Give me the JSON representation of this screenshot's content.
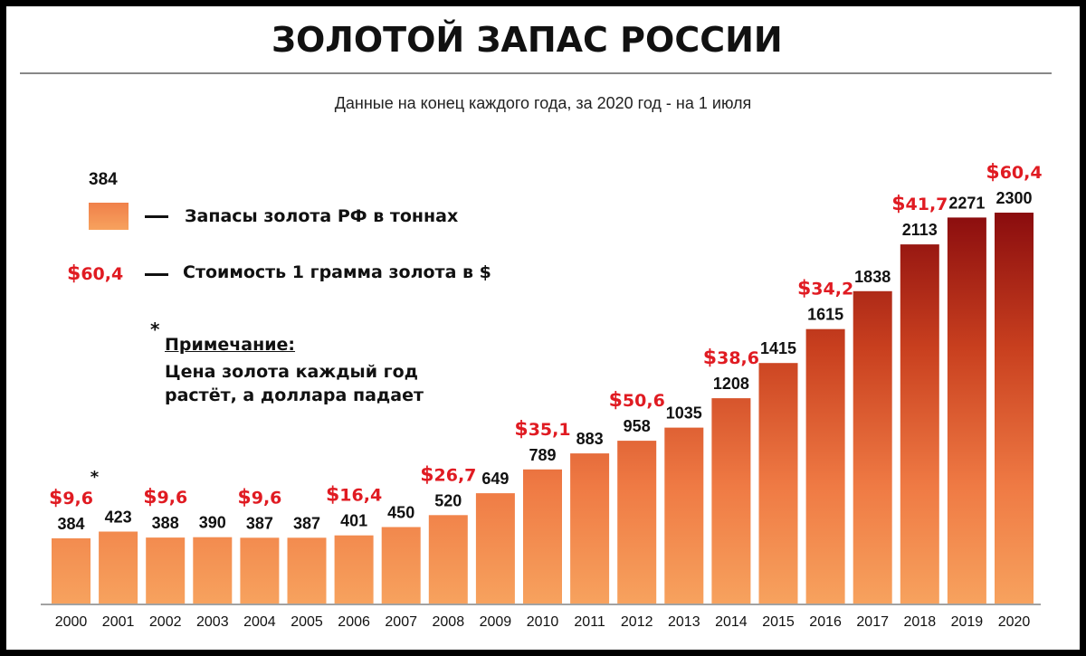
{
  "header": {
    "title": "ЗОЛОТОЙ ЗАПАС РОССИИ",
    "subtitle": "Данные на конец каждого года, за 2020 год - на 1 июля"
  },
  "legend": {
    "sample_value": "384",
    "reserves_label": "Запасы золота РФ в тоннах",
    "price_dollar": "$",
    "price_sample": "60,4",
    "price_label": "Стоимость 1 грамма золота в $"
  },
  "note": {
    "star": "*",
    "title": "Примечание:",
    "line1": "Цена золота каждый год",
    "line2": "растёт, а доллара падает"
  },
  "colors": {
    "bar_light": "#f7a25e",
    "bar_dark": "#8a0c0e",
    "price_red": "#e01b22"
  },
  "chart_data": {
    "type": "bar",
    "categories": [
      "2000",
      "2001",
      "2002",
      "2003",
      "2004",
      "2005",
      "2006",
      "2007",
      "2008",
      "2009",
      "2010",
      "2011",
      "2012",
      "2013",
      "2014",
      "2015",
      "2016",
      "2017",
      "2018",
      "2019",
      "2020"
    ],
    "series": [
      {
        "name": "Запасы золота РФ в тоннах",
        "values": [
          384,
          423,
          388,
          390,
          387,
          387,
          401,
          450,
          520,
          649,
          789,
          883,
          958,
          1035,
          1208,
          1415,
          1615,
          1838,
          2113,
          2271,
          2300
        ]
      }
    ],
    "price_annotations": [
      {
        "category": "2000",
        "label": "9,6",
        "dollar": "$",
        "star": "*"
      },
      {
        "category": "2002",
        "label": "9,6",
        "dollar": "$"
      },
      {
        "category": "2004",
        "label": "9,6",
        "dollar": "$"
      },
      {
        "category": "2006",
        "label": "16,4",
        "dollar": "$"
      },
      {
        "category": "2008",
        "label": "26,7",
        "dollar": "$"
      },
      {
        "category": "2010",
        "label": "35,1",
        "dollar": "$"
      },
      {
        "category": "2012",
        "label": "50,6",
        "dollar": "$"
      },
      {
        "category": "2014",
        "label": "38,6",
        "dollar": "$"
      },
      {
        "category": "2016",
        "label": "34,2",
        "dollar": "$"
      },
      {
        "category": "2018",
        "label": "41,7",
        "dollar": "$"
      },
      {
        "category": "2020",
        "label": "60,4",
        "dollar": "$"
      }
    ],
    "ylim": [
      0,
      2300
    ],
    "grid": false
  }
}
